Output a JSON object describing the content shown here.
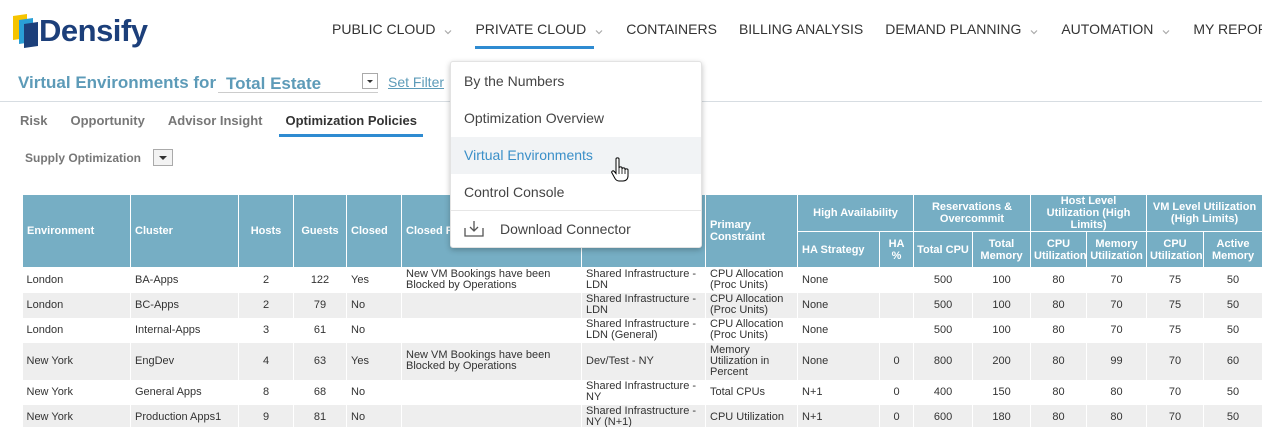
{
  "brand": {
    "name": "Densify"
  },
  "nav": [
    {
      "label": "PUBLIC CLOUD",
      "chevron": true
    },
    {
      "label": "PRIVATE CLOUD",
      "chevron": true,
      "active": true
    },
    {
      "label": "CONTAINERS",
      "chevron": false
    },
    {
      "label": "BILLING ANALYSIS",
      "chevron": false
    },
    {
      "label": "DEMAND PLANNING",
      "chevron": true
    },
    {
      "label": "AUTOMATION",
      "chevron": true
    },
    {
      "label": "MY REPORTS",
      "chevron": true
    }
  ],
  "header": {
    "title": "Virtual Environments for",
    "scope": "Total Estate",
    "set_filter": "Set Filter"
  },
  "subtabs": [
    "Risk",
    "Opportunity",
    "Advisor Insight",
    "Optimization Policies"
  ],
  "active_subtab": "Optimization Policies",
  "policy_select": "Supply Optimization",
  "menu": {
    "items": [
      "By the Numbers",
      "Optimization Overview",
      "Virtual Environments",
      "Control Console"
    ],
    "hovered": "Virtual Environments",
    "download": "Download Connector"
  },
  "table": {
    "groups": {
      "high_availability": "High Availability",
      "reservations": "Reservations & Overcommit",
      "host_level": "Host Level Utilization (High Limits)",
      "vm_level": "VM Level Utilization (High Limits)"
    },
    "columns": {
      "environment": "Environment",
      "cluster": "Cluster",
      "hosts": "Hosts",
      "guests": "Guests",
      "closed": "Closed",
      "closed_reason": "Closed R",
      "policy": "",
      "primary_constraint": "Primary Constraint",
      "ha_strategy": "HA Strategy",
      "ha_pct": "HA %",
      "total_cpu": "Total CPU",
      "total_memory": "Total Memory",
      "host_cpu": "CPU Utilization",
      "host_memory": "Memory Utilization",
      "vm_cpu": "CPU Utilization",
      "vm_memory": "Active Memory"
    },
    "rows": [
      [
        "London",
        "BA-Apps",
        "2",
        "122",
        "Yes",
        "New VM Bookings have been Blocked by Operations",
        "Shared Infrastructure - LDN",
        "CPU Allocation (Proc Units)",
        "None",
        "",
        "500",
        "100",
        "80",
        "70",
        "75",
        "50"
      ],
      [
        "London",
        "BC-Apps",
        "2",
        "79",
        "No",
        "",
        "Shared Infrastructure - LDN",
        "CPU Allocation (Proc Units)",
        "None",
        "",
        "500",
        "100",
        "80",
        "70",
        "75",
        "50"
      ],
      [
        "London",
        "Internal-Apps",
        "3",
        "61",
        "No",
        "",
        "Shared Infrastructure - LDN (General)",
        "CPU Allocation (Proc Units)",
        "None",
        "",
        "500",
        "100",
        "80",
        "70",
        "75",
        "50"
      ],
      [
        "New York",
        "EngDev",
        "4",
        "63",
        "Yes",
        "New VM Bookings have been Blocked by Operations",
        "Dev/Test - NY",
        "Memory Utilization in Percent",
        "None",
        "0",
        "800",
        "200",
        "80",
        "99",
        "70",
        "60"
      ],
      [
        "New York",
        "General Apps",
        "8",
        "68",
        "No",
        "",
        "Shared Infrastructure - NY",
        "Total CPUs",
        "N+1",
        "0",
        "400",
        "150",
        "80",
        "80",
        "70",
        "50"
      ],
      [
        "New York",
        "Production Apps1",
        "9",
        "81",
        "No",
        "",
        "Shared Infrastructure - NY (N+1)",
        "CPU Utilization",
        "N+1",
        "0",
        "600",
        "180",
        "80",
        "80",
        "70",
        "50"
      ]
    ]
  },
  "colors": {
    "accent": "#2e8bd1",
    "header_bg": "#76aec4",
    "title": "#5d9bb8"
  }
}
